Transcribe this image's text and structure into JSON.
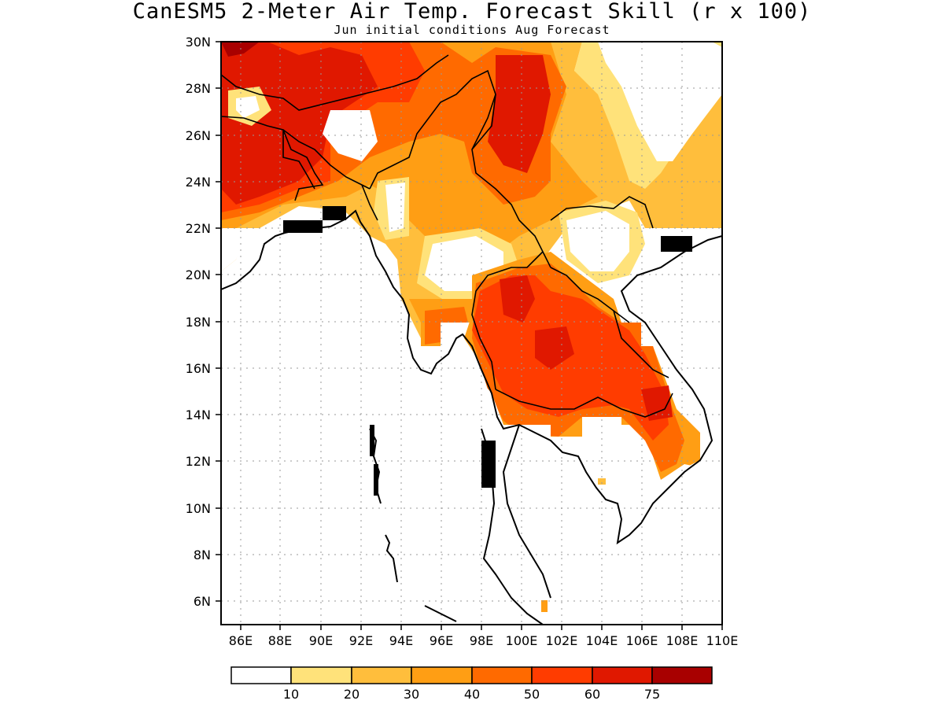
{
  "title": "CanESM5 2-Meter Air Temp. Forecast Skill (r x 100)",
  "subtitle": "Jun initial conditions  Aug Forecast",
  "map": {
    "lon_range": [
      85,
      110
    ],
    "lat_range": [
      5,
      30
    ],
    "lon_ticks": [
      "86E",
      "88E",
      "90E",
      "92E",
      "94E",
      "96E",
      "98E",
      "100E",
      "102E",
      "104E",
      "106E",
      "108E",
      "110E"
    ],
    "lat_ticks": [
      "6N",
      "8N",
      "10N",
      "12N",
      "14N",
      "16N",
      "18N",
      "20N",
      "22N",
      "24N",
      "26N",
      "28N",
      "30N"
    ],
    "grid": "dotted"
  },
  "colorbar": {
    "labels": [
      "10",
      "20",
      "30",
      "40",
      "50",
      "60",
      "75"
    ],
    "colors": [
      "#ffffff",
      "#ffe27a",
      "#ffbe3c",
      "#ff9e14",
      "#ff6a00",
      "#ff3c00",
      "#e01800",
      "#a80000"
    ]
  }
}
